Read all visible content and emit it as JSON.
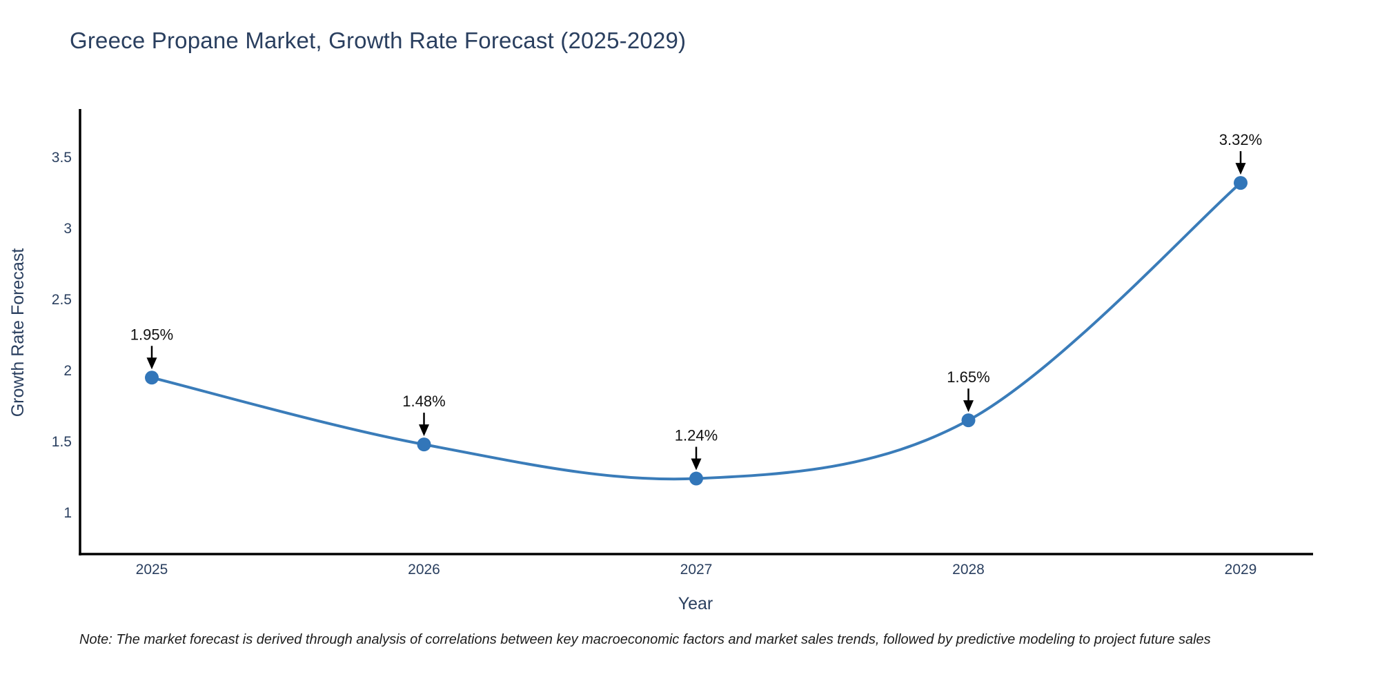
{
  "title": "Greece Propane Market, Growth Rate Forecast (2025-2029)",
  "note": "Note: The market forecast is derived through analysis of correlations between key macroeconomic factors and market sales trends, followed by predictive modeling to project future sales",
  "chart_data": {
    "type": "line",
    "line_shape": "spline",
    "title": "Greece Propane Market, Growth Rate Forecast (2025-2029)",
    "xlabel": "Year",
    "ylabel": "Growth Rate Forecast",
    "categories": [
      "2025",
      "2026",
      "2027",
      "2028",
      "2029"
    ],
    "x": [
      2025,
      2026,
      2027,
      2028,
      2029
    ],
    "values": [
      1.95,
      1.48,
      1.24,
      1.65,
      3.32
    ],
    "labels": [
      "1.95%",
      "1.48%",
      "1.24%",
      "1.65%",
      "3.32%"
    ],
    "y_ticks": [
      1,
      1.5,
      2,
      2.5,
      3,
      3.5
    ],
    "ylim": [
      0.71,
      3.84
    ],
    "xlim": [
      2024.73,
      2029.26
    ],
    "grid": false,
    "legend": "none",
    "annotations": "value labels with downward arrows above each point",
    "colors": {
      "line": "#3a7cb9",
      "marker": "#3276b9",
      "axis": "#000000",
      "arrow": "#000000",
      "title_text": "#2a3f5f",
      "tick_text": "#2a3f5f",
      "label_text": "#111111",
      "background": "#ffffff"
    }
  }
}
